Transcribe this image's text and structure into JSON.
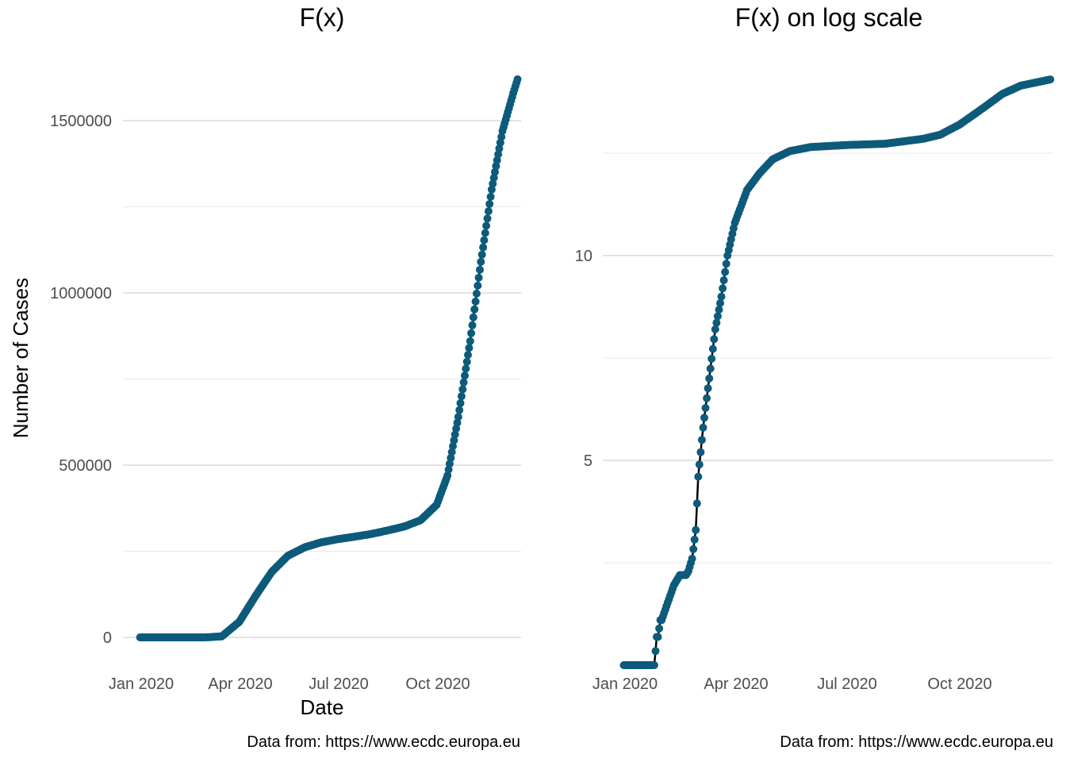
{
  "colors": {
    "points": "#0d5a7a",
    "line": "#000000",
    "grid": "#e3e3e3"
  },
  "chart_data": [
    {
      "type": "line",
      "title": "F(x)",
      "xlabel": "Date",
      "ylabel": "Number of Cases",
      "caption": "Data from: https://www.ecdc.europa.eu",
      "x_ticks": [
        "Jan 2020",
        "Apr 2020",
        "Jul 2020",
        "Oct 2020"
      ],
      "y_ticks": [
        "0",
        "500000",
        "1000000",
        "1500000"
      ],
      "y_scale": "linear",
      "ylim": [
        -60000,
        1640000
      ],
      "grid": true,
      "series": [
        {
          "x": [
            "2019-12-31",
            "2020-01-31",
            "2020-02-29",
            "2020-03-15",
            "2020-03-31",
            "2020-04-15",
            "2020-04-30",
            "2020-05-15",
            "2020-05-31",
            "2020-06-15",
            "2020-06-30",
            "2020-07-15",
            "2020-07-31",
            "2020-08-15",
            "2020-08-31",
            "2020-09-15",
            "2020-09-30",
            "2020-10-10",
            "2020-10-20",
            "2020-10-31",
            "2020-11-10",
            "2020-11-20",
            "2020-11-30",
            "2020-12-10",
            "2020-12-14"
          ],
          "y": [
            0,
            0,
            0,
            3000,
            45000,
            120000,
            190000,
            237000,
            262000,
            276000,
            285000,
            292000,
            300000,
            310000,
            322000,
            340000,
            385000,
            470000,
            640000,
            860000,
            1090000,
            1300000,
            1470000,
            1580000,
            1620000
          ]
        }
      ]
    },
    {
      "type": "line",
      "title": "F(x) on log scale",
      "xlabel": "",
      "ylabel": "",
      "caption": "Data from: https://www.ecdc.europa.eu",
      "x_ticks": [
        "Jan 2020",
        "Apr 2020",
        "Jul 2020",
        "Oct 2020"
      ],
      "y_ticks": [
        "5",
        "10"
      ],
      "y_scale": "linear (values are natural log of cumulative cases)",
      "ylim": [
        -0.3,
        14.4
      ],
      "grid": true,
      "series": [
        {
          "x": [
            "2019-12-31",
            "2020-01-24",
            "2020-01-25",
            "2020-01-27",
            "2020-01-28",
            "2020-01-30",
            "2020-01-31",
            "2020-02-10",
            "2020-02-15",
            "2020-02-20",
            "2020-02-22",
            "2020-02-25",
            "2020-02-28",
            "2020-03-01",
            "2020-03-05",
            "2020-03-10",
            "2020-03-15",
            "2020-03-20",
            "2020-03-25",
            "2020-03-31",
            "2020-04-10",
            "2020-04-20",
            "2020-05-01",
            "2020-05-15",
            "2020-06-01",
            "2020-07-01",
            "2020-08-01",
            "2020-09-01",
            "2020-09-15",
            "2020-10-01",
            "2020-10-20",
            "2020-11-05",
            "2020-11-20",
            "2020-12-14"
          ],
          "y": [
            0,
            0,
            0,
            0.69,
            0.69,
            1.1,
            1.1,
            1.95,
            2.2,
            2.2,
            2.3,
            2.6,
            3.3,
            4.6,
            5.8,
            7.0,
            8.2,
            9.0,
            10.0,
            10.8,
            11.6,
            12.0,
            12.35,
            12.55,
            12.65,
            12.7,
            12.73,
            12.85,
            12.95,
            13.2,
            13.6,
            13.95,
            14.15,
            14.3
          ]
        }
      ]
    }
  ]
}
